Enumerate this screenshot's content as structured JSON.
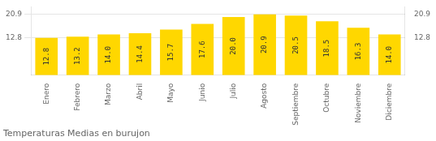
{
  "chart_data": {
    "type": "bar",
    "title": "Temperaturas Medias en burujon",
    "categories": [
      "Enero",
      "Febrero",
      "Marzo",
      "Abril",
      "Mayo",
      "Junio",
      "Julio",
      "Agosto",
      "Septiembre",
      "Octubre",
      "Noviembre",
      "Diciembre"
    ],
    "values": [
      12.8,
      13.2,
      14.0,
      14.4,
      15.7,
      17.6,
      20.0,
      20.9,
      20.5,
      18.5,
      16.3,
      14.0
    ],
    "value_labels": [
      "12.8",
      "13.2",
      "14.0",
      "14.4",
      "15.7",
      "17.6",
      "20.0",
      "20.9",
      "20.5",
      "18.5",
      "16.3",
      "14.0"
    ],
    "color": "#FFD700",
    "ylim": [
      0.0,
      23.5
    ],
    "yticks": [
      12.8,
      20.9
    ],
    "grid": true,
    "data_labels": true
  }
}
